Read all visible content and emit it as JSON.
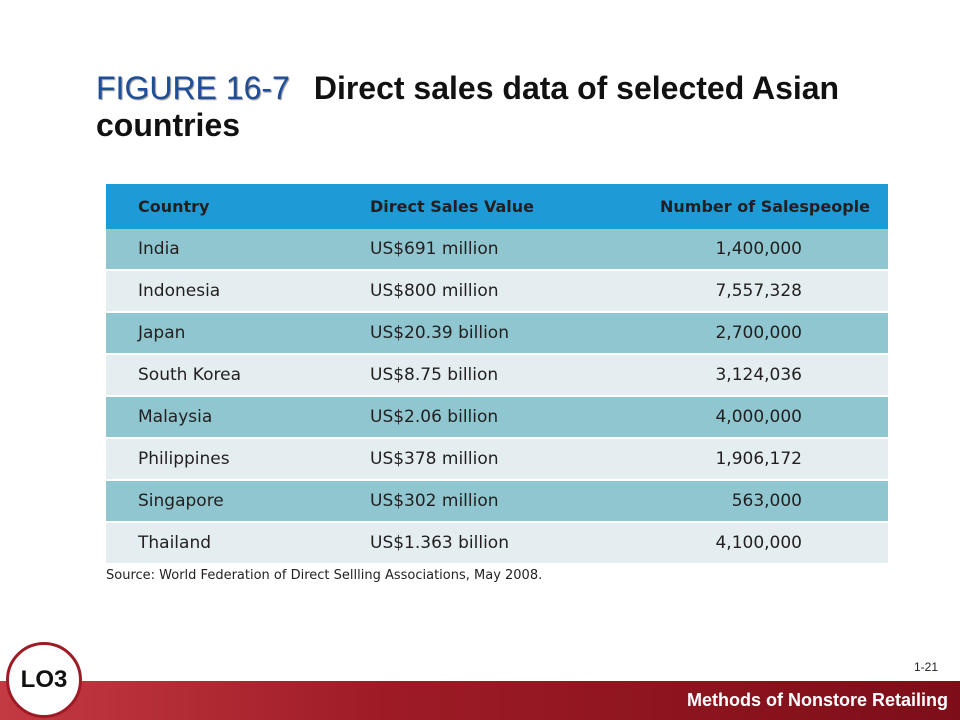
{
  "title": {
    "figure_label": "FIGURE 16-7",
    "text": "Direct sales data of selected Asian countries"
  },
  "table": {
    "headers": [
      "Country",
      "Direct Sales Value",
      "Number of Salespeople"
    ],
    "rows": [
      [
        "India",
        "US$691 million",
        "1,400,000"
      ],
      [
        "Indonesia",
        "US$800 million",
        "7,557,328"
      ],
      [
        "Japan",
        "US$20.39 billion",
        "2,700,000"
      ],
      [
        "South Korea",
        "US$8.75 billion",
        "3,124,036"
      ],
      [
        "Malaysia",
        "US$2.06 billion",
        "4,000,000"
      ],
      [
        "Philippines",
        "US$378 million",
        "1,906,172"
      ],
      [
        "Singapore",
        "US$302 million",
        "563,000"
      ],
      [
        "Thailand",
        "US$1.363 billion",
        "4,100,000"
      ]
    ]
  },
  "source": "Source: World Federation of Direct Sellling Associations, May 2008.",
  "page_number": "1-21",
  "footer": {
    "label": "Methods of Nonstore Retailing",
    "badge": "LO3"
  },
  "colors": {
    "header_row": "#1e9ad6",
    "band_dark": "#8fc6cf",
    "band_light": "#e4eef0",
    "figure_label": "#1f4e99",
    "footer_bar": "#9e1b26"
  }
}
